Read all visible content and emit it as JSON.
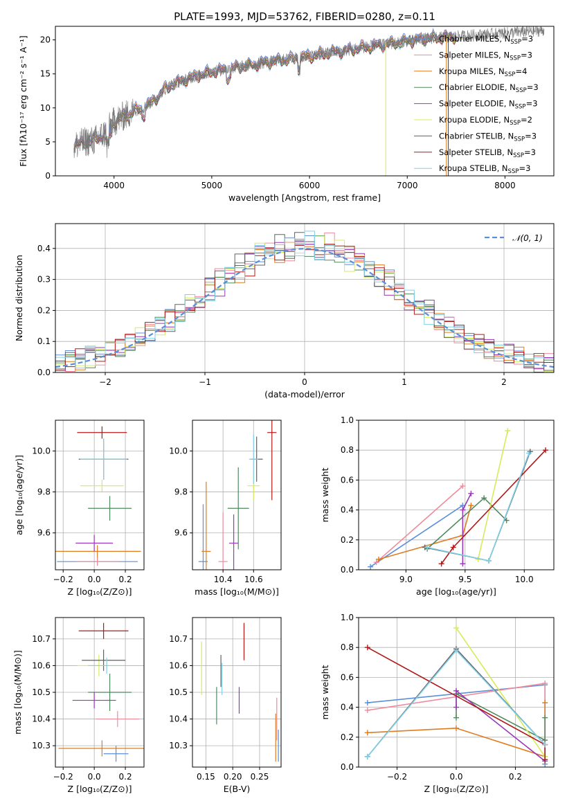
{
  "figure_title": "PLATE=1993, MJD=53762, FIBERID=0280, z=0.11",
  "series_colors": [
    "#5b8ed8",
    "#f08a9b",
    "#e07b1f",
    "#4e8a5e",
    "#9a36b8",
    "#d4ec5a",
    "#606060",
    "#b01818",
    "#7fd0e8"
  ],
  "chart_data": [
    {
      "id": "spectrum",
      "type": "line",
      "xlabel": "wavelength [Angstrom, rest frame]",
      "ylabel": "Flux [fλ10⁻¹⁷ erg cm⁻² s⁻¹ A⁻¹]",
      "xlim": [
        3400,
        8500
      ],
      "ylim": [
        0,
        22
      ],
      "xticks": [
        "4000",
        "5000",
        "6000",
        "7000",
        "8000"
      ],
      "yticks": [
        "0",
        "5",
        "10",
        "15",
        "20"
      ],
      "continuum_x": [
        3600,
        3700,
        3800,
        3900,
        4000,
        4100,
        4200,
        4300,
        4400,
        4500,
        4600,
        4800,
        5000,
        5200,
        5400,
        5600,
        5800,
        6000,
        6200,
        6400,
        6600,
        6800,
        7000,
        7200,
        7400,
        7600,
        7800,
        8000,
        8200,
        8400
      ],
      "continuum_y": [
        4.5,
        5.0,
        5.2,
        6.2,
        8.0,
        8.8,
        9.5,
        10.0,
        11.0,
        12.5,
        13.5,
        14.5,
        15.3,
        15.8,
        16.3,
        16.8,
        17.2,
        17.6,
        18.1,
        18.5,
        19.0,
        19.4,
        19.8,
        20.2,
        20.4,
        20.6,
        20.8,
        21.0,
        21.2,
        21.4
      ],
      "series": [
        {
          "name": "Chabrier MILES, N_SSP=3",
          "label": "Chabrier MILES, N",
          "sub": "SSP",
          "suffix": "=3",
          "color": "#5b8ed8"
        },
        {
          "name": "Salpeter MILES, N_SSP=3",
          "label": "Salpeter MILES, N",
          "sub": "SSP",
          "suffix": "=3",
          "color": "#f08a9b"
        },
        {
          "name": "Kroupa MILES, N_SSP=4",
          "label": "Kroupa MILES, N",
          "sub": "SSP",
          "suffix": "=4",
          "color": "#e07b1f"
        },
        {
          "name": "Chabrier ELODIE, N_SSP=3",
          "label": "Chabrier ELODIE, N",
          "sub": "SSP",
          "suffix": "=3",
          "color": "#4e8a5e"
        },
        {
          "name": "Salpeter ELODIE, N_SSP=3",
          "label": "Salpeter ELODIE, N",
          "sub": "SSP",
          "suffix": "=3",
          "color": "#9a36b8"
        },
        {
          "name": "Kroupa ELODIE, N_SSP=2",
          "label": "Kroupa ELODIE, N",
          "sub": "SSP",
          "suffix": "=2",
          "color": "#d4ec5a"
        },
        {
          "name": "Chabrier STELIB, N_SSP=3",
          "label": "Chabrier STELIB, N",
          "sub": "SSP",
          "suffix": "=3",
          "color": "#606060"
        },
        {
          "name": "Salpeter STELIB, N_SSP=3",
          "label": "Salpeter STELIB, N",
          "sub": "SSP",
          "suffix": "=3",
          "color": "#b01818"
        },
        {
          "name": "Kroupa STELIB, N_SSP=3",
          "label": "Kroupa STELIB, N",
          "sub": "SSP",
          "suffix": "=3",
          "color": "#7fd0e8"
        }
      ],
      "legend": "top-right",
      "grid": false
    },
    {
      "id": "residuals",
      "type": "histogram",
      "xlabel": "(data-model)/error",
      "ylabel": "Normed distribution",
      "xlim": [
        -2.5,
        2.5
      ],
      "ylim": [
        0,
        0.48
      ],
      "xticks": [
        "−2",
        "−1",
        "0",
        "1",
        "2"
      ],
      "yticks": [
        "0.0",
        "0.1",
        "0.2",
        "0.3",
        "0.4"
      ],
      "grid": true,
      "reference_label": "𝒩(0, 1)",
      "reference_curve": "normal(0,1)"
    },
    {
      "id": "age_vs_Z",
      "type": "errorbar",
      "xlabel": "Z [log₁₀(Z/Z⊙)]",
      "ylabel": "age  [log₁₀(age/yr)]",
      "xlim": [
        -0.25,
        0.32
      ],
      "ylim": [
        9.42,
        10.15
      ],
      "xticks": [
        "−0.2",
        "0.0",
        "0.2"
      ],
      "yticks": [
        "9.6",
        "9.8",
        "10.0"
      ],
      "grid": true,
      "points": [
        {
          "x": 0.02,
          "xerr": 0.26,
          "y": 9.46,
          "yerr": 0.02
        },
        {
          "x": 0.02,
          "xerr": 0.14,
          "y": 9.46,
          "yerr": 0.02
        },
        {
          "x": 0.02,
          "xerr": 0.28,
          "y": 9.51,
          "yerr": 0.03
        },
        {
          "x": 0.1,
          "xerr": 0.14,
          "y": 9.72,
          "yerr": 0.06
        },
        {
          "x": 0.0,
          "xerr": 0.12,
          "y": 9.55,
          "yerr": 0.04
        },
        {
          "x": 0.05,
          "xerr": 0.14,
          "y": 9.83,
          "yerr": 0.03
        },
        {
          "x": 0.06,
          "xerr": 0.16,
          "y": 9.96,
          "yerr": 0.1
        },
        {
          "x": 0.05,
          "xerr": 0.16,
          "y": 10.09,
          "yerr": 0.03
        },
        {
          "x": 0.06,
          "xerr": 0.15,
          "y": 9.96,
          "yerr": 0.1
        }
      ]
    },
    {
      "id": "age_vs_mass",
      "type": "errorbar",
      "xlabel": "mass [log₁₀(M/M⊙)]",
      "ylabel": "",
      "xlim": [
        10.2,
        10.78
      ],
      "ylim": [
        9.42,
        10.15
      ],
      "xticks": [
        "10.4",
        "10.6"
      ],
      "yticks": [
        "9.6",
        "9.8",
        "10.0"
      ],
      "grid": true,
      "points": [
        {
          "x": 10.27,
          "xerr": 0.03,
          "y": 9.46,
          "yerr": 0.28
        },
        {
          "x": 10.4,
          "xerr": 0.03,
          "y": 9.46,
          "yerr": 0.24
        },
        {
          "x": 10.29,
          "xerr": 0.03,
          "y": 9.51,
          "yerr": 0.34
        },
        {
          "x": 10.5,
          "xerr": 0.07,
          "y": 9.72,
          "yerr": 0.2
        },
        {
          "x": 10.47,
          "xerr": 0.03,
          "y": 9.55,
          "yerr": 0.14
        },
        {
          "x": 10.6,
          "xerr": 0.04,
          "y": 9.83,
          "yerr": 0.07
        },
        {
          "x": 10.62,
          "xerr": 0.04,
          "y": 9.96,
          "yerr": 0.11
        },
        {
          "x": 10.72,
          "xerr": 0.03,
          "y": 10.09,
          "yerr": 0.33
        },
        {
          "x": 10.6,
          "xerr": 0.03,
          "y": 9.96,
          "yerr": 0.12
        }
      ]
    },
    {
      "id": "weight_vs_age",
      "type": "line",
      "xlabel": "age  [log₁₀(age/yr)]",
      "ylabel": "mass weight",
      "xlim": [
        8.6,
        10.25
      ],
      "ylim": [
        0,
        1.0
      ],
      "xticks": [
        "9.0",
        "9.5",
        "10.0"
      ],
      "yticks": [
        "0.0",
        "0.2",
        "0.4",
        "0.6",
        "0.8",
        "1.0"
      ],
      "grid": true,
      "series": [
        {
          "x": [
            8.7,
            9.48
          ],
          "y": [
            0.02,
            0.43
          ]
        },
        {
          "x": [
            8.75,
            9.48
          ],
          "y": [
            0.05,
            0.56
          ]
        },
        {
          "x": [
            8.77,
            9.48,
            9.55
          ],
          "y": [
            0.07,
            0.23,
            0.43
          ]
        },
        {
          "x": [
            9.18,
            9.66,
            9.85
          ],
          "y": [
            0.14,
            0.48,
            0.33
          ]
        },
        {
          "x": [
            9.48,
            9.48,
            9.55
          ],
          "y": [
            0.04,
            0.4,
            0.51
          ]
        },
        {
          "x": [
            9.61,
            9.86
          ],
          "y": [
            0.07,
            0.93
          ]
        },
        {
          "x": [
            9.16,
            9.7,
            10.05
          ],
          "y": [
            0.15,
            0.06,
            0.79
          ]
        },
        {
          "x": [
            9.3,
            9.4,
            10.18
          ],
          "y": [
            0.04,
            0.15,
            0.8
          ]
        },
        {
          "x": [
            9.18,
            9.7,
            10.04
          ],
          "y": [
            0.15,
            0.06,
            0.78
          ]
        }
      ]
    },
    {
      "id": "mass_vs_Z",
      "type": "errorbar",
      "xlabel": "Z [log₁₀(Z/Z⊙)]",
      "ylabel": "mass [log₁₀(M/M⊙)]",
      "xlim": [
        -0.25,
        0.32
      ],
      "ylim": [
        10.22,
        10.78
      ],
      "xticks": [
        "−0.2",
        "0.0",
        "0.2"
      ],
      "yticks": [
        "10.3",
        "10.4",
        "10.5",
        "10.6",
        "10.7"
      ],
      "grid": true,
      "points": [
        {
          "x": 0.14,
          "xerr": 0.08,
          "y": 10.27,
          "yerr": 0.03
        },
        {
          "x": 0.15,
          "xerr": 0.14,
          "y": 10.4,
          "yerr": 0.03
        },
        {
          "x": 0.05,
          "xerr": 0.28,
          "y": 10.29,
          "yerr": 0.03
        },
        {
          "x": 0.1,
          "xerr": 0.14,
          "y": 10.5,
          "yerr": 0.07
        },
        {
          "x": 0.0,
          "xerr": 0.14,
          "y": 10.47,
          "yerr": 0.03
        },
        {
          "x": 0.03,
          "xerr": 0.14,
          "y": 10.6,
          "yerr": 0.04
        },
        {
          "x": 0.06,
          "xerr": 0.14,
          "y": 10.62,
          "yerr": 0.04
        },
        {
          "x": 0.06,
          "xerr": 0.16,
          "y": 10.73,
          "yerr": 0.03
        },
        {
          "x": 0.08,
          "xerr": 0.12,
          "y": 10.6,
          "yerr": 0.03
        }
      ]
    },
    {
      "id": "mass_vs_EBV",
      "type": "errorbar",
      "xlabel": "E(B-V)",
      "ylabel": "",
      "xlim": [
        0.125,
        0.29
      ],
      "ylim": [
        10.22,
        10.78
      ],
      "xticks": [
        "0.15",
        "0.20",
        "0.25"
      ],
      "yticks": [
        "10.3",
        "10.4",
        "10.5",
        "10.6",
        "10.7"
      ],
      "grid": true,
      "points": [
        {
          "x": 0.285,
          "y": 10.3,
          "yerr": 0.06
        },
        {
          "x": 0.282,
          "y": 10.4,
          "yerr": 0.08
        },
        {
          "x": 0.28,
          "y": 10.33,
          "yerr": 0.09
        },
        {
          "x": 0.17,
          "y": 10.45,
          "yerr": 0.07
        },
        {
          "x": 0.212,
          "y": 10.47,
          "yerr": 0.05
        },
        {
          "x": 0.142,
          "y": 10.59,
          "yerr": 0.1
        },
        {
          "x": 0.178,
          "y": 10.58,
          "yerr": 0.06
        },
        {
          "x": 0.221,
          "y": 10.69,
          "yerr": 0.07
        },
        {
          "x": 0.18,
          "y": 10.55,
          "yerr": 0.06
        }
      ]
    },
    {
      "id": "weight_vs_Z",
      "type": "line",
      "xlabel": "Z [log₁₀(Z/Z⊙)]",
      "ylabel": "mass weight",
      "xlim": [
        -0.33,
        0.33
      ],
      "ylim": [
        0,
        1.0
      ],
      "xticks": [
        "−0.2",
        "0.0",
        "0.2"
      ],
      "yticks": [
        "0.0",
        "0.2",
        "0.4",
        "0.6",
        "0.8",
        "1.0"
      ],
      "grid": true,
      "series": [
        {
          "x": [
            -0.3,
            0.3,
            0.3
          ],
          "y": [
            0.43,
            0.55,
            0.02
          ]
        },
        {
          "x": [
            -0.3,
            0.3,
            0.3
          ],
          "y": [
            0.38,
            0.56,
            0.05
          ]
        },
        {
          "x": [
            -0.3,
            0.0,
            0.3,
            0.3
          ],
          "y": [
            0.23,
            0.26,
            0.07,
            0.43
          ]
        },
        {
          "x": [
            0.0,
            0.0,
            0.3,
            0.3
          ],
          "y": [
            0.33,
            0.49,
            0.18,
            0.33
          ]
        },
        {
          "x": [
            0.0,
            0.0,
            0.3
          ],
          "y": [
            0.4,
            0.51,
            0.04
          ]
        },
        {
          "x": [
            0.0,
            0.3
          ],
          "y": [
            0.93,
            0.07
          ]
        },
        {
          "x": [
            -0.3,
            0.0,
            0.3
          ],
          "y": [
            0.07,
            0.79,
            0.15
          ]
        },
        {
          "x": [
            -0.3,
            0.3,
            0.3
          ],
          "y": [
            0.8,
            0.15,
            0.05
          ]
        },
        {
          "x": [
            -0.3,
            0.0,
            0.3
          ],
          "y": [
            0.07,
            0.78,
            0.15
          ]
        }
      ]
    }
  ]
}
